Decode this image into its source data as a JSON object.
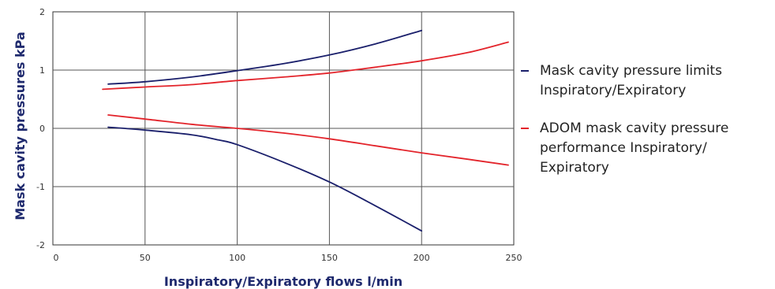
{
  "chart_data": {
    "type": "line",
    "title": "",
    "xlabel": "Inspiratory/Expiratory flows l/min",
    "ylabel": "Mask cavity pressures kPa",
    "xlim": [
      0,
      250
    ],
    "ylim": [
      -2,
      2
    ],
    "xticks": [
      0,
      50,
      100,
      150,
      200,
      250
    ],
    "yticks": [
      2,
      1,
      0,
      -1,
      -2
    ],
    "grid": true,
    "legend_position": "right",
    "series": [
      {
        "name": "Mask cavity pressure limits Inspiratory/Expiratory",
        "color": "#1a1f6b",
        "lines": [
          {
            "x": [
              30,
              50,
              75,
              100,
              125,
              150,
              175,
              200
            ],
            "y": [
              0.76,
              0.8,
              0.88,
              0.99,
              1.11,
              1.26,
              1.45,
              1.68
            ]
          },
          {
            "x": [
              30,
              50,
              75,
              90,
              100,
              125,
              150,
              175,
              200
            ],
            "y": [
              0.02,
              -0.03,
              -0.11,
              -0.2,
              -0.28,
              -0.58,
              -0.92,
              -1.33,
              -1.76
            ]
          }
        ]
      },
      {
        "name": "ADOM mask cavity pressure performance Inspiratory/ Expiratory",
        "color": "#e3242b",
        "lines": [
          {
            "x": [
              27,
              50,
              75,
              100,
              125,
              150,
              175,
              200,
              225,
              247
            ],
            "y": [
              0.67,
              0.71,
              0.75,
              0.82,
              0.88,
              0.95,
              1.05,
              1.16,
              1.3,
              1.48
            ]
          },
          {
            "x": [
              30,
              50,
              75,
              100,
              125,
              150,
              175,
              200,
              225,
              247
            ],
            "y": [
              0.23,
              0.16,
              0.07,
              0.0,
              -0.08,
              -0.18,
              -0.3,
              -0.42,
              -0.53,
              -0.63
            ]
          }
        ]
      }
    ]
  },
  "legend": {
    "items": [
      {
        "text": "Mask cavity pressure limits\nInspiratory/Expiratory",
        "color": "#1a1f6b"
      },
      {
        "text": "ADOM mask cavity pressure\nperformance Inspiratory/\nExpiratory",
        "color": "#e3242b"
      }
    ]
  }
}
